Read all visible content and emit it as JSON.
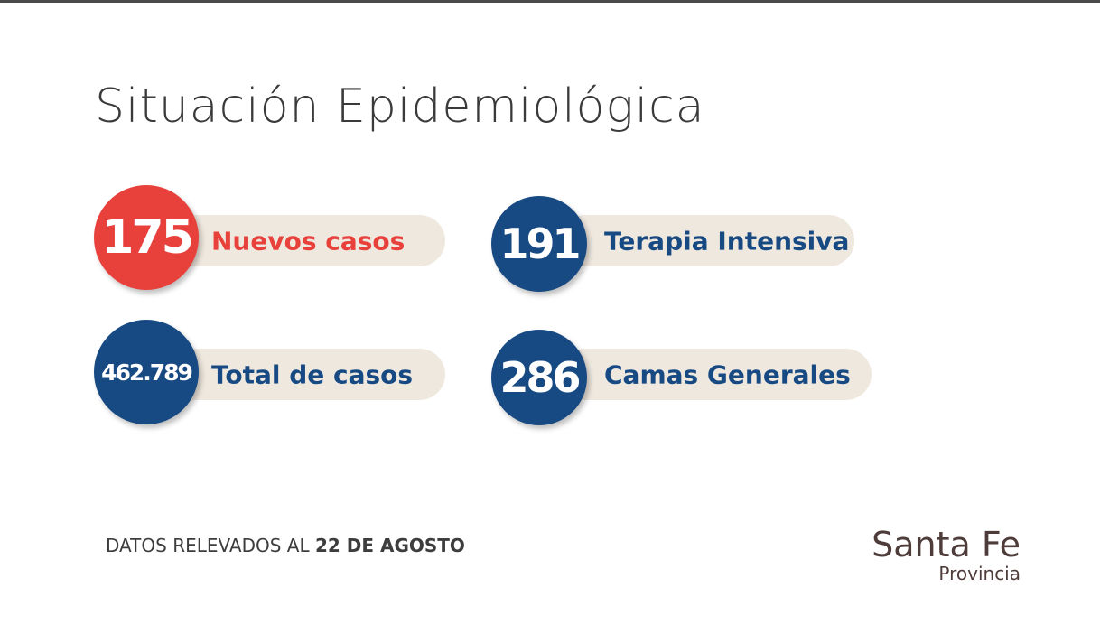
{
  "title": "Situación Epidemiológica",
  "stats": [
    {
      "value": "175",
      "label": "Nuevos casos",
      "color": "#e8413c"
    },
    {
      "value": "191",
      "label": "Terapia Intensiva",
      "color": "#174a83"
    },
    {
      "value": "462.789",
      "label": "Total de casos",
      "color": "#174a83"
    },
    {
      "value": "286",
      "label": "Camas Generales",
      "color": "#174a83"
    }
  ],
  "footer": {
    "prefix": "DATOS RELEVADOS AL ",
    "date": "22 DE AGOSTO"
  },
  "logo": {
    "line1": "Santa Fe",
    "line2": "Provincia"
  }
}
